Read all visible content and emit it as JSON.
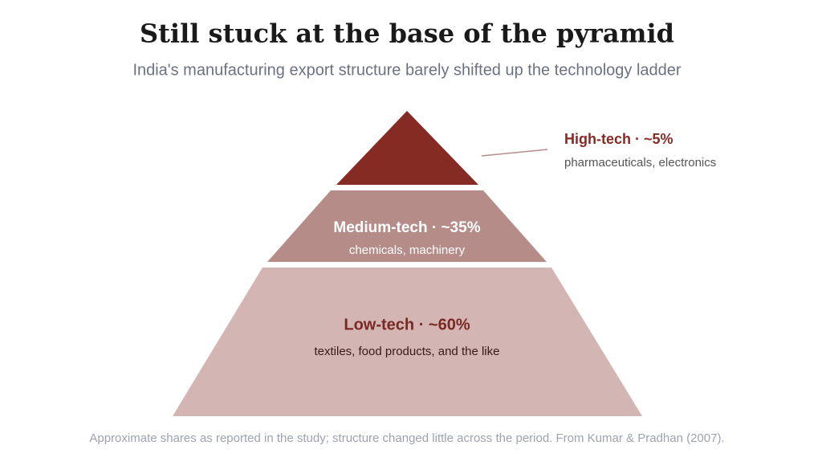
{
  "header": {
    "title": "Still stuck at the base of the pyramid",
    "subtitle": "India's manufacturing export structure barely shifted up the technology ladder"
  },
  "tiers": [
    {
      "label": "High-tech · ~5%",
      "description": "pharmaceuticals, electronics"
    },
    {
      "label": "Medium-tech · ~35%",
      "description": "chemicals, machinery"
    },
    {
      "label": "Low-tech · ~60%",
      "description": "textiles, food products, and the like"
    }
  ],
  "footnote": "Approximate shares as reported in the study; structure changed little across the period. From Kumar & Pradhan (2007)."
}
